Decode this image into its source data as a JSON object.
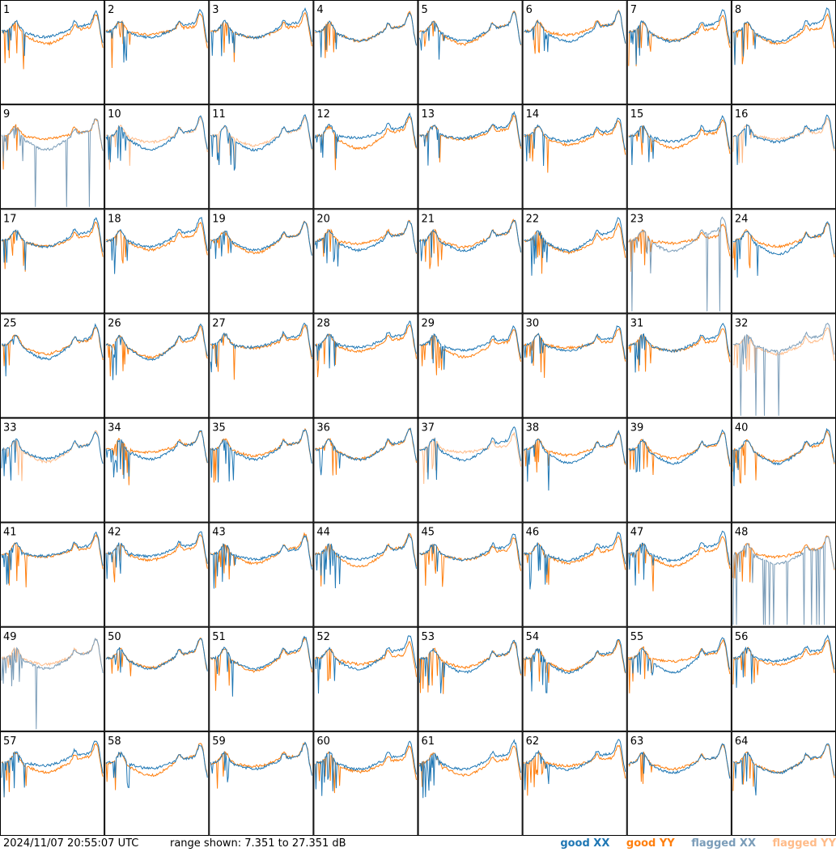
{
  "footer": {
    "timestamp": "2024/11/07 20:55:07 UTC",
    "range_text": "range shown: 7.351 to 27.351 dB"
  },
  "legend": [
    {
      "label": "good XX",
      "color": "#1f77b4"
    },
    {
      "label": "good YY",
      "color": "#ff7f0e"
    },
    {
      "label": "flagged XX",
      "color": "#7a9cb8"
    },
    {
      "label": "flagged YY",
      "color": "#ffbb88"
    }
  ],
  "chart_data": {
    "type": "line",
    "layout": "8x8 grid of small-multiple spectra",
    "y_range_db": [
      7.351,
      27.351
    ],
    "grid": false,
    "panels": [
      {
        "label": "1",
        "xx": "good",
        "yy": "good"
      },
      {
        "label": "2",
        "xx": "good",
        "yy": "good"
      },
      {
        "label": "3",
        "xx": "good",
        "yy": "good"
      },
      {
        "label": "4",
        "xx": "good",
        "yy": "good"
      },
      {
        "label": "5",
        "xx": "good",
        "yy": "good"
      },
      {
        "label": "6",
        "xx": "good",
        "yy": "good"
      },
      {
        "label": "7",
        "xx": "good",
        "yy": "good"
      },
      {
        "label": "8",
        "xx": "good",
        "yy": "good"
      },
      {
        "label": "9",
        "xx": "flagged",
        "yy": "good"
      },
      {
        "label": "10",
        "xx": "good",
        "yy": "flagged"
      },
      {
        "label": "11",
        "xx": "good",
        "yy": "flagged"
      },
      {
        "label": "12",
        "xx": "good",
        "yy": "good"
      },
      {
        "label": "13",
        "xx": "good",
        "yy": "good"
      },
      {
        "label": "14",
        "xx": "good",
        "yy": "good"
      },
      {
        "label": "15",
        "xx": "good",
        "yy": "good"
      },
      {
        "label": "16",
        "xx": "good",
        "yy": "flagged"
      },
      {
        "label": "17",
        "xx": "good",
        "yy": "good"
      },
      {
        "label": "18",
        "xx": "good",
        "yy": "good"
      },
      {
        "label": "19",
        "xx": "good",
        "yy": "good"
      },
      {
        "label": "20",
        "xx": "good",
        "yy": "good"
      },
      {
        "label": "21",
        "xx": "good",
        "yy": "good"
      },
      {
        "label": "22",
        "xx": "good",
        "yy": "good"
      },
      {
        "label": "23",
        "xx": "flagged",
        "yy": "good"
      },
      {
        "label": "24",
        "xx": "good",
        "yy": "good"
      },
      {
        "label": "25",
        "xx": "good",
        "yy": "good"
      },
      {
        "label": "26",
        "xx": "good",
        "yy": "good"
      },
      {
        "label": "27",
        "xx": "good",
        "yy": "good"
      },
      {
        "label": "28",
        "xx": "good",
        "yy": "good"
      },
      {
        "label": "29",
        "xx": "good",
        "yy": "good"
      },
      {
        "label": "30",
        "xx": "good",
        "yy": "good"
      },
      {
        "label": "31",
        "xx": "good",
        "yy": "good"
      },
      {
        "label": "32",
        "xx": "flagged",
        "yy": "flagged"
      },
      {
        "label": "33",
        "xx": "good",
        "yy": "flagged"
      },
      {
        "label": "34",
        "xx": "good",
        "yy": "good"
      },
      {
        "label": "35",
        "xx": "good",
        "yy": "good"
      },
      {
        "label": "36",
        "xx": "good",
        "yy": "good"
      },
      {
        "label": "37",
        "xx": "good",
        "yy": "flagged"
      },
      {
        "label": "38",
        "xx": "good",
        "yy": "good"
      },
      {
        "label": "39",
        "xx": "good",
        "yy": "good"
      },
      {
        "label": "40",
        "xx": "good",
        "yy": "good"
      },
      {
        "label": "41",
        "xx": "good",
        "yy": "good"
      },
      {
        "label": "42",
        "xx": "good",
        "yy": "good"
      },
      {
        "label": "43",
        "xx": "good",
        "yy": "good"
      },
      {
        "label": "44",
        "xx": "good",
        "yy": "good"
      },
      {
        "label": "45",
        "xx": "good",
        "yy": "good"
      },
      {
        "label": "46",
        "xx": "good",
        "yy": "good"
      },
      {
        "label": "47",
        "xx": "good",
        "yy": "good"
      },
      {
        "label": "48",
        "xx": "flagged",
        "yy": "good"
      },
      {
        "label": "49",
        "xx": "flagged",
        "yy": "flagged"
      },
      {
        "label": "50",
        "xx": "good",
        "yy": "good"
      },
      {
        "label": "51",
        "xx": "good",
        "yy": "good"
      },
      {
        "label": "52",
        "xx": "good",
        "yy": "good"
      },
      {
        "label": "53",
        "xx": "good",
        "yy": "good"
      },
      {
        "label": "54",
        "xx": "good",
        "yy": "good"
      },
      {
        "label": "55",
        "xx": "good",
        "yy": "good"
      },
      {
        "label": "56",
        "xx": "good",
        "yy": "good"
      },
      {
        "label": "57",
        "xx": "good",
        "yy": "good"
      },
      {
        "label": "58",
        "xx": "good",
        "yy": "good"
      },
      {
        "label": "59",
        "xx": "good",
        "yy": "good"
      },
      {
        "label": "60",
        "xx": "good",
        "yy": "good"
      },
      {
        "label": "61",
        "xx": "good",
        "yy": "good"
      },
      {
        "label": "62",
        "xx": "good",
        "yy": "good"
      },
      {
        "label": "63",
        "xx": "good",
        "yy": "good"
      },
      {
        "label": "64",
        "xx": "good",
        "yy": "good"
      }
    ]
  }
}
